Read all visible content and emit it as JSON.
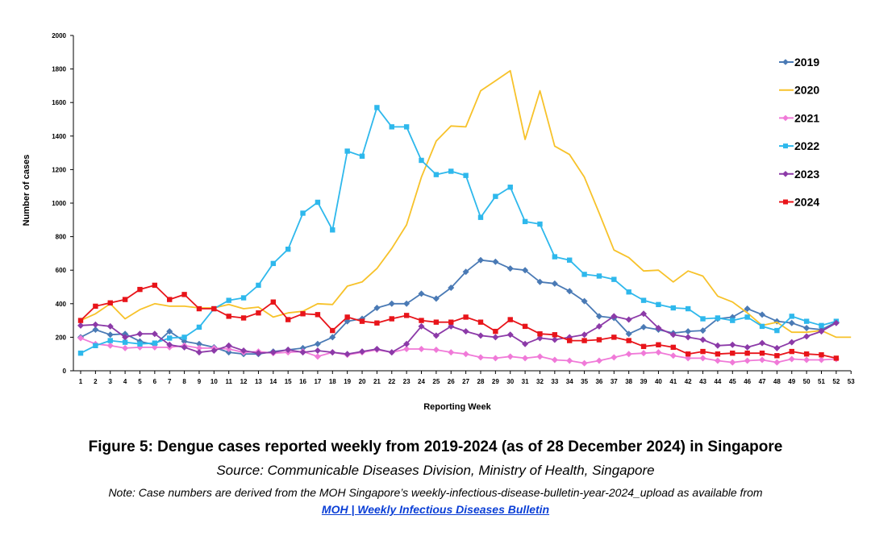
{
  "caption": {
    "title": "Figure 5: Dengue cases reported weekly from 2019-2024 (as of 28 December 2024) in Singapore",
    "source": "Source: Communicable Diseases Division, Ministry of Health, Singapore",
    "note": "Note: Case numbers are derived from the MOH Singapore’s weekly-infectious-disease-bulletin-year-2024_upload as available from",
    "link_text": "MOH | Weekly Infectious Diseases Bulletin"
  },
  "chart_data": {
    "type": "line",
    "title": "",
    "xlabel": "Reporting Week",
    "ylabel": "Number of cases",
    "xlim": [
      1,
      53
    ],
    "ylim": [
      0,
      2000
    ],
    "x_ticks": [
      1,
      2,
      3,
      4,
      5,
      6,
      7,
      8,
      9,
      10,
      11,
      12,
      13,
      14,
      15,
      16,
      17,
      18,
      19,
      20,
      21,
      22,
      23,
      24,
      25,
      26,
      27,
      28,
      29,
      30,
      31,
      32,
      33,
      34,
      35,
      36,
      37,
      38,
      39,
      40,
      41,
      42,
      43,
      44,
      45,
      46,
      47,
      48,
      49,
      50,
      51,
      52,
      53
    ],
    "y_ticks": [
      0,
      200,
      400,
      600,
      800,
      1000,
      1200,
      1400,
      1600,
      1800,
      2000
    ],
    "grid": false,
    "legend_position": "right",
    "series": [
      {
        "name": "2019",
        "color": "#4a7ab5",
        "marker": "diamond",
        "values": [
          200,
          245,
          215,
          220,
          175,
          155,
          235,
          175,
          160,
          140,
          110,
          100,
          100,
          115,
          125,
          135,
          160,
          200,
          295,
          310,
          375,
          400,
          400,
          460,
          430,
          495,
          590,
          660,
          650,
          610,
          600,
          530,
          520,
          475,
          415,
          325,
          315,
          220,
          260,
          245,
          225,
          235,
          240,
          310,
          320,
          370,
          335,
          295,
          285,
          255,
          245,
          290
        ]
      },
      {
        "name": "2020",
        "color": "#f7c22a",
        "marker": "none",
        "values": [
          300,
          340,
          400,
          310,
          365,
          400,
          385,
          385,
          375,
          375,
          395,
          370,
          380,
          320,
          345,
          355,
          400,
          395,
          505,
          530,
          610,
          730,
          870,
          1155,
          1370,
          1460,
          1455,
          1670,
          1730,
          1790,
          1380,
          1670,
          1340,
          1290,
          1155,
          940,
          720,
          675,
          595,
          600,
          530,
          595,
          565,
          445,
          410,
          345,
          270,
          290,
          230,
          230,
          240,
          200,
          200
        ]
      },
      {
        "name": "2021",
        "color": "#f07ad8",
        "marker": "diamond",
        "values": [
          195,
          160,
          150,
          135,
          140,
          140,
          140,
          150,
          135,
          135,
          130,
          110,
          115,
          105,
          110,
          115,
          85,
          110,
          95,
          110,
          125,
          110,
          130,
          130,
          125,
          110,
          100,
          80,
          75,
          85,
          75,
          85,
          65,
          60,
          45,
          60,
          80,
          100,
          105,
          110,
          90,
          75,
          75,
          60,
          50,
          60,
          65,
          50,
          70,
          65,
          65,
          70
        ]
      },
      {
        "name": "2022",
        "color": "#2eb8ec",
        "marker": "square",
        "values": [
          105,
          150,
          180,
          170,
          160,
          165,
          195,
          200,
          260,
          370,
          420,
          435,
          510,
          640,
          725,
          940,
          1005,
          840,
          1310,
          1280,
          1570,
          1455,
          1455,
          1255,
          1170,
          1190,
          1165,
          915,
          1040,
          1095,
          890,
          875,
          680,
          660,
          575,
          565,
          545,
          470,
          420,
          395,
          375,
          370,
          310,
          315,
          300,
          320,
          265,
          240,
          325,
          295,
          270,
          295
        ]
      },
      {
        "name": "2023",
        "color": "#8c3aa8",
        "marker": "diamond",
        "values": [
          270,
          275,
          265,
          200,
          220,
          220,
          155,
          140,
          110,
          120,
          150,
          120,
          105,
          110,
          125,
          110,
          120,
          110,
          100,
          115,
          130,
          110,
          160,
          265,
          210,
          265,
          235,
          210,
          200,
          215,
          160,
          195,
          185,
          200,
          215,
          265,
          325,
          305,
          340,
          255,
          215,
          200,
          185,
          150,
          155,
          140,
          165,
          135,
          170,
          205,
          235,
          285
        ]
      },
      {
        "name": "2024",
        "color": "#e8141a",
        "marker": "square",
        "values": [
          300,
          385,
          405,
          425,
          485,
          510,
          425,
          455,
          370,
          370,
          325,
          315,
          345,
          410,
          305,
          340,
          335,
          240,
          320,
          295,
          285,
          310,
          330,
          300,
          290,
          290,
          320,
          290,
          235,
          305,
          265,
          220,
          215,
          180,
          180,
          185,
          200,
          180,
          145,
          155,
          140,
          100,
          115,
          100,
          105,
          105,
          105,
          90,
          115,
          100,
          95,
          75
        ]
      }
    ]
  }
}
